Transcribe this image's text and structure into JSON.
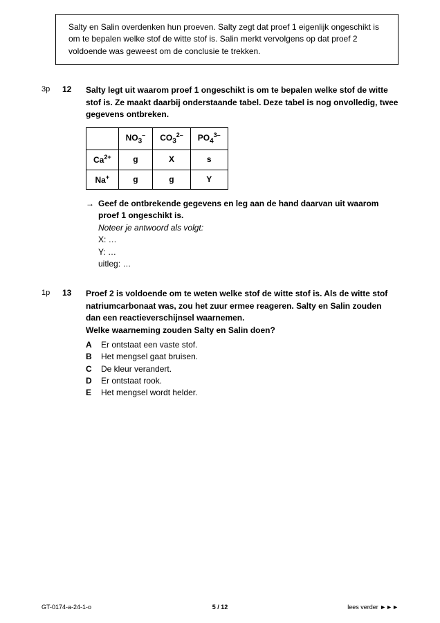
{
  "intro": "Salty en Salin overdenken hun proeven. Salty zegt dat proef 1 eigenlijk ongeschikt is om te bepalen welke stof de witte stof is. Salin merkt vervolgens op dat proef 2 voldoende was geweest om de conclusie te trekken.",
  "q12": {
    "points": "3p",
    "number": "12",
    "prompt": "Salty legt uit waarom proef 1 ongeschikt is om te bepalen welke stof de witte stof is. Ze maakt daarbij onderstaande tabel. Deze tabel is nog onvolledig, twee gegevens ontbreken.",
    "table": {
      "headers": [
        "",
        "NO3–",
        "CO32–",
        "PO43–"
      ],
      "rows": [
        [
          "Ca2+",
          "g",
          "X",
          "s"
        ],
        [
          "Na+",
          "g",
          "g",
          "Y"
        ]
      ]
    },
    "sub": "Geef de ontbrekende gegevens en leg aan de hand daarvan uit waarom proef 1 ongeschikt is.",
    "hint": "Noteer je antwoord als volgt:",
    "lines": [
      "X: …",
      "Y: …",
      "uitleg: …"
    ]
  },
  "q13": {
    "points": "1p",
    "number": "13",
    "prompt": "Proef 2 is voldoende om te weten welke stof de witte stof is. Als de witte stof natriumcarbonaat was, zou het zuur ermee reageren. Salty en Salin zouden dan een reactieverschijnsel waarnemen.",
    "question": "Welke waarneming zouden Salty en Salin doen?",
    "options": [
      {
        "letter": "A",
        "text": "Er ontstaat een vaste stof."
      },
      {
        "letter": "B",
        "text": "Het mengsel gaat bruisen."
      },
      {
        "letter": "C",
        "text": "De kleur verandert."
      },
      {
        "letter": "D",
        "text": "Er ontstaat rook."
      },
      {
        "letter": "E",
        "text": "Het mengsel wordt helder."
      }
    ]
  },
  "footer": {
    "left": "GT-0174-a-24-1-o",
    "center": "5 / 12",
    "right": "lees verder ►►►"
  }
}
